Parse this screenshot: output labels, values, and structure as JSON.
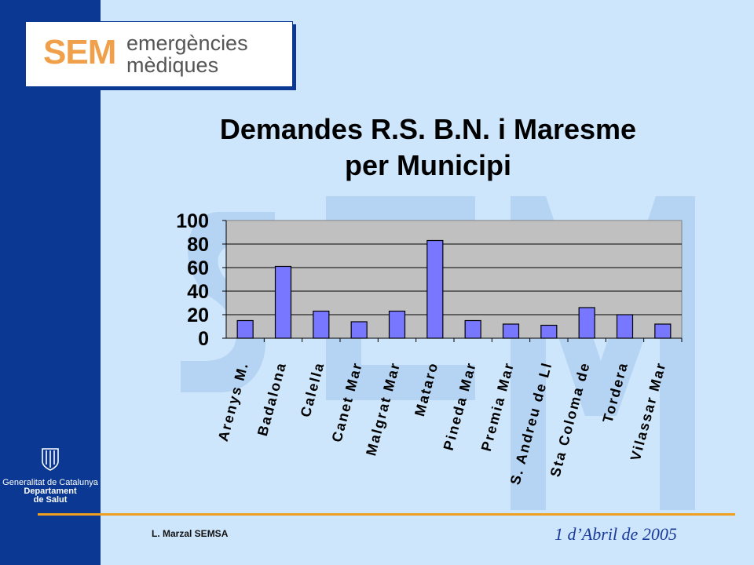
{
  "logo": {
    "mark": "SEM",
    "line1": "emergències",
    "line2": "mèdiques"
  },
  "institution": {
    "line1": "Generalitat de Catalunya",
    "line2": "Departament",
    "line3": "de Salut"
  },
  "footer": {
    "author": "L. Marzal  SEMSA",
    "date": "1 d’Abril  de 2005"
  },
  "colors": {
    "sidebar": "#0a3893",
    "background": "#cde6fb",
    "plot_area": "#c0c0c0",
    "bar": "#7777ff",
    "accent_line": "#f0a020"
  },
  "chart_data": {
    "type": "bar",
    "title_line1": "Demandes R.S. B.N. i Maresme",
    "title_line2": "per Municipi",
    "categories": [
      "Arenys M.",
      "Badalona",
      "Calella",
      "Canet Mar",
      "Malgrat Mar",
      "Mataro",
      "Pineda Mar",
      "Premia Mar",
      "S. Andreu de Ll",
      "Sta Coloma de",
      "Tordera",
      "Vilassar Mar"
    ],
    "values": [
      15,
      61,
      23,
      14,
      23,
      83,
      15,
      12,
      11,
      26,
      20,
      12
    ],
    "yticks": [
      "0",
      "20",
      "40",
      "60",
      "80",
      "100"
    ],
    "ylim": [
      0,
      100
    ],
    "grid": true,
    "legend": "none"
  }
}
